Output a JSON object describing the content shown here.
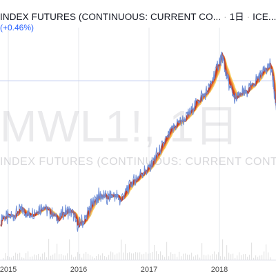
{
  "header": {
    "title": "INDEX FUTURES (CONTINUOUS: CURRENT CO...",
    "interval": "1日",
    "exchange": "ICE...",
    "change": "(+0.46%)"
  },
  "watermark": {
    "symbol": "MWL1!, 1日",
    "description": "INDEX FUTURES (CONTINUOUS: CURRENT CONTRACT IN FRONT)"
  },
  "chart_data": {
    "type": "line",
    "xlabel": "",
    "ylabel": "",
    "x_axis_labels": [
      "2015",
      "2016",
      "2017",
      "2018"
    ],
    "colors": {
      "price_line": "#6f8fd8",
      "ribbon": [
        "#c23b22",
        "#d8532b",
        "#e8702f",
        "#f08d3a",
        "#f5ab4a",
        "#f7c35c",
        "#f6d878"
      ],
      "grid": "#e5e7eb",
      "volume": "#e3e3e3"
    },
    "series": [
      {
        "x": [
          2014.9,
          2015.0,
          2015.1,
          2015.2,
          2015.3,
          2015.4,
          2015.5,
          2015.6,
          2015.7,
          2015.8,
          2015.9,
          2016.0,
          2016.1,
          2016.2,
          2016.3,
          2016.4,
          2016.5,
          2016.6,
          2016.7,
          2016.8,
          2016.9,
          2017.0,
          2017.1,
          2017.2,
          2017.3,
          2017.4,
          2017.5,
          2017.6,
          2017.7,
          2017.8,
          2017.9,
          2018.0,
          2018.04,
          2018.1,
          2018.2,
          2018.3,
          2018.4,
          2018.5,
          2018.6,
          2018.7,
          2018.75,
          2018.8,
          2018.85
        ],
        "values": [
          74,
          72,
          80,
          86,
          78,
          88,
          92,
          82,
          70,
          82,
          80,
          58,
          74,
          98,
          112,
          106,
          114,
          102,
          126,
          138,
          150,
          158,
          178,
          196,
          220,
          236,
          242,
          258,
          276,
          286,
          310,
          342,
          350,
          316,
          278,
          284,
          290,
          304,
          324,
          338,
          320,
          268,
          236
        ]
      }
    ]
  }
}
